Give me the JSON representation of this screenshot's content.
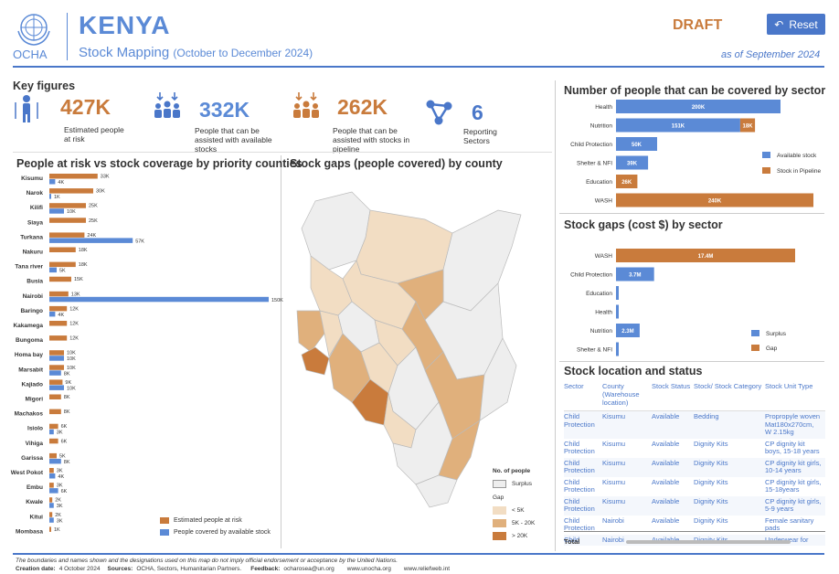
{
  "header": {
    "org": "OCHA",
    "country": "KENYA",
    "subtitle": "Stock Mapping",
    "period": "(October to December 2024)",
    "draft": "DRAFT",
    "reset_label": "Reset",
    "as_of": "as of September 2024"
  },
  "key_figures": {
    "title": "Key figures",
    "items": [
      {
        "value": "427K",
        "label": "Estimated people at risk",
        "color": "#c97b3c",
        "icon": "person-arrows-icon"
      },
      {
        "value": "332K",
        "label": "People that can be assisted with available stocks",
        "color": "#4a77c9",
        "icon": "people-group-icon"
      },
      {
        "value": "262K",
        "label": "People that can be assisted with stocks in pipeline",
        "color": "#c97b3c",
        "icon": "people-group-icon"
      },
      {
        "value": "6",
        "label": "Reporting Sectors",
        "color": "#4a77c9",
        "icon": "network-icon"
      }
    ]
  },
  "colors": {
    "risk": "#c97b3c",
    "covered": "#5b8ad6",
    "available": "#5b8ad6",
    "pipeline": "#c97b3c",
    "gap_low": "#f2ddc3",
    "gap_mid": "#e0b07c",
    "gap_high": "#c97b3c",
    "surplus": "#eeeeee"
  },
  "county_chart": {
    "title": "People at risk vs stock coverage by priority counties",
    "legend_risk": "Estimated people at risk",
    "legend_covered": "People covered by available stock"
  },
  "map": {
    "title": "Stock gaps (people covered) by county",
    "legend_title": "No. of people",
    "surplus_label": "Surplus",
    "gap_label": "Gap",
    "gap_classes": [
      "< 5K",
      "5K - 20K",
      "> 20K"
    ]
  },
  "chart_data": [
    {
      "type": "bar",
      "orientation": "horizontal",
      "title": "People at risk vs stock coverage by priority counties",
      "categories": [
        "Kisumu",
        "Narok",
        "Kilifi",
        "Siaya",
        "Turkana",
        "Nakuru",
        "Tana river",
        "Busia",
        "Nairobi",
        "Baringo",
        "Kakamega",
        "Bungoma",
        "Homa bay",
        "Marsabit",
        "Kajiado",
        "Migori",
        "Machakos",
        "Isiolo",
        "Vihiga",
        "Garissa",
        "West Pokot",
        "Embu",
        "Kwale",
        "Kitui",
        "Mombasa"
      ],
      "series": [
        {
          "name": "Estimated people at risk",
          "values": [
            33,
            30,
            25,
            25,
            24,
            18,
            18,
            15,
            13,
            12,
            12,
            12,
            10,
            10,
            9,
            8,
            8,
            6,
            6,
            5,
            3,
            3,
            2,
            2,
            1
          ],
          "labels": [
            "33K",
            "30K",
            "25K",
            "25K",
            "24K",
            "18K",
            "18K",
            "15K",
            "13K",
            "12K",
            "12K",
            "12K",
            "10K",
            "10K",
            "9K",
            "8K",
            "8K",
            "6K",
            "6K",
            "5K",
            "3K",
            "3K",
            "2K",
            "2K",
            "1K"
          ]
        },
        {
          "name": "People covered by available stock",
          "values": [
            4,
            1,
            10,
            null,
            57,
            null,
            5,
            null,
            150,
            4,
            null,
            null,
            10,
            8,
            10,
            null,
            null,
            3,
            null,
            8,
            4,
            6,
            3,
            3,
            null
          ],
          "labels": [
            "4K",
            "1K",
            "10K",
            "",
            "57K",
            "",
            "5K",
            "",
            "150K",
            "4K",
            "",
            "",
            "10K",
            "8K",
            "10K",
            "",
            "",
            "3K",
            "",
            "8K",
            "4K",
            "6K",
            "3K",
            "3K",
            ""
          ]
        }
      ]
    },
    {
      "type": "bar",
      "orientation": "horizontal",
      "stacked": true,
      "title": "Number of people that can be covered by sector",
      "categories": [
        "Health",
        "Nutrition",
        "Child Protection",
        "Shelter & NFI",
        "Education",
        "WASH"
      ],
      "series": [
        {
          "name": "Available stock",
          "values": [
            200,
            151,
            50,
            39,
            null,
            null
          ],
          "labels": [
            "200K",
            "151K",
            "50K",
            "39K",
            "",
            ""
          ]
        },
        {
          "name": "Stock in Pipeline",
          "values": [
            null,
            18,
            null,
            null,
            26,
            240
          ],
          "labels": [
            "",
            "18K",
            "",
            "",
            "26K",
            "240K"
          ]
        }
      ]
    },
    {
      "type": "bar",
      "orientation": "horizontal",
      "title": "Stock gaps (cost $) by sector",
      "categories": [
        "WASH",
        "Child Protection",
        "Education",
        "Health",
        "Nutrition",
        "Shelter & NFI"
      ],
      "series": [
        {
          "name": "Surplus",
          "values": [
            null,
            3.7,
            0.1,
            0.1,
            2.3,
            0.2
          ],
          "labels": [
            "",
            "3.7M",
            "",
            "",
            "2.3M",
            ""
          ]
        },
        {
          "name": "Gap",
          "values": [
            17.4,
            null,
            null,
            null,
            null,
            null
          ],
          "labels": [
            "17.4M",
            "",
            "",
            "",
            "",
            ""
          ]
        }
      ]
    }
  ],
  "table": {
    "title": "Stock location and status",
    "columns": [
      "Sector",
      "County (Warehouse location)",
      "Stock Status",
      "Stock/ Stock Category",
      "Stock Unit Type"
    ],
    "rows": [
      [
        "Child Protection",
        "Kisumu",
        "Available",
        "Bedding",
        "Propropyle woven Mat180x270cm, W 2.15kg"
      ],
      [
        "Child Protection",
        "Kisumu",
        "Available",
        "Dignity Kits",
        "CP dignity kit boys, 15-18 years"
      ],
      [
        "Child Protection",
        "Kisumu",
        "Available",
        "Dignity Kits",
        "CP dignity kit girls, 10-14 years"
      ],
      [
        "Child Protection",
        "Kisumu",
        "Available",
        "Dignity Kits",
        "CP dignity kit girls, 15-18years"
      ],
      [
        "Child Protection",
        "Kisumu",
        "Available",
        "Dignity Kits",
        "CP dignity kit girls, 5-9 years"
      ],
      [
        "Child Protection",
        "Nairobi",
        "Available",
        "Dignity Kits",
        "Female sanitary pads"
      ],
      [
        "Child",
        "Nairobi",
        "Available",
        "Dignity Kits",
        "Underwear for"
      ]
    ],
    "total_label": "Total"
  },
  "footer": {
    "disclaimer": "The boundaries and names shown and the designations used on this map do not imply official endorsement or acceptance by the United Nations.",
    "creation_label": "Creation date:",
    "creation_date": "4 October 2024",
    "sources_label": "Sources:",
    "sources": "OCHA, Sectors, Humanitarian Partners.",
    "feedback_label": "Feedback:",
    "feedback": "ocharosea@un.org",
    "link1": "www.unocha.org",
    "link2": "www.reliefweb.int"
  }
}
